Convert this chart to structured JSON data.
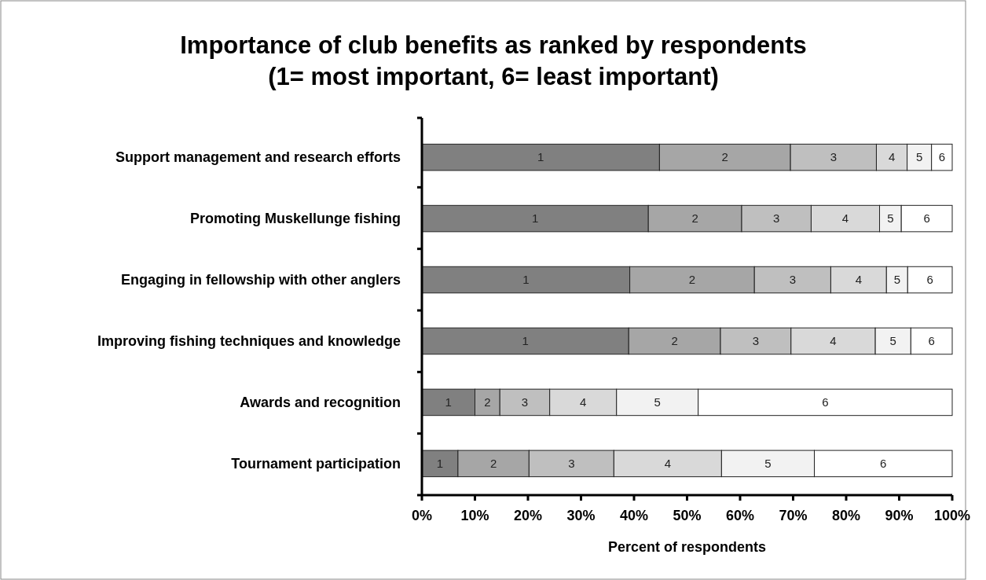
{
  "chart_data": {
    "type": "bar",
    "orientation": "horizontal",
    "stacked": true,
    "title": "Importance of club benefits as ranked by respondents\n(1= most important, 6= least important)",
    "xlabel": "Percent of respondents",
    "categories": [
      "Support management and research efforts",
      "Promoting Muskellunge fishing",
      "Engaging in fellowship with other anglers",
      "Improving fishing techniques and knowledge",
      "Awards and recognition",
      "Tournament participation"
    ],
    "series": [
      {
        "name": "1",
        "color": "#808080",
        "values": [
          44.8,
          42.7,
          39.2,
          39.0,
          10.0,
          6.8
        ]
      },
      {
        "name": "2",
        "color": "#a6a6a6",
        "values": [
          24.7,
          17.6,
          23.5,
          17.3,
          4.7,
          13.4
        ]
      },
      {
        "name": "3",
        "color": "#bfbfbf",
        "values": [
          16.2,
          13.1,
          14.4,
          13.3,
          9.4,
          16.0
        ]
      },
      {
        "name": "4",
        "color": "#d9d9d9",
        "values": [
          5.8,
          12.9,
          10.5,
          15.9,
          12.6,
          20.3
        ]
      },
      {
        "name": "5",
        "color": "#f2f2f2",
        "values": [
          4.6,
          4.1,
          4.0,
          6.7,
          15.4,
          17.5
        ]
      },
      {
        "name": "6",
        "color": "#ffffff",
        "values": [
          3.9,
          9.6,
          8.4,
          7.8,
          47.9,
          26.0
        ]
      }
    ],
    "xlim": [
      0,
      100
    ],
    "xticks": [
      {
        "value": 0,
        "label": "0%"
      },
      {
        "value": 10,
        "label": "10%"
      },
      {
        "value": 20,
        "label": "20%"
      },
      {
        "value": 30,
        "label": "30%"
      },
      {
        "value": 40,
        "label": "40%"
      },
      {
        "value": 50,
        "label": "50%"
      },
      {
        "value": 60,
        "label": "60%"
      },
      {
        "value": 70,
        "label": "70%"
      },
      {
        "value": 80,
        "label": "80%"
      },
      {
        "value": 90,
        "label": "90%"
      },
      {
        "value": 100,
        "label": "100%"
      }
    ]
  }
}
